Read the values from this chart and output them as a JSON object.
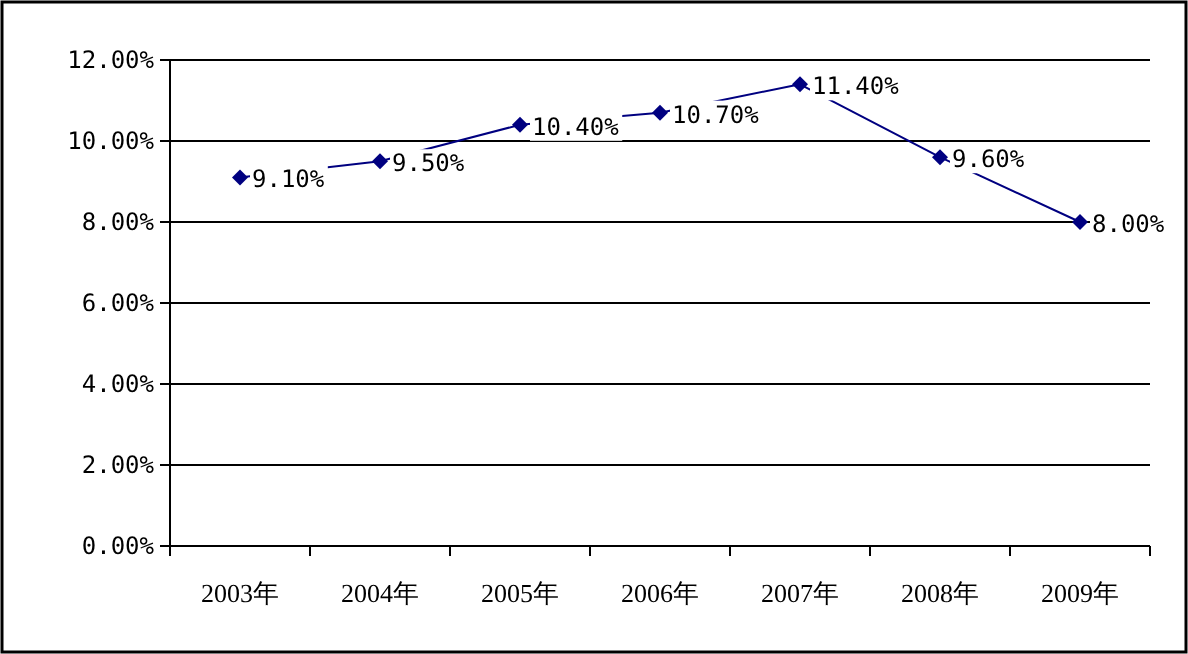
{
  "chart_data": {
    "type": "line",
    "categories": [
      "2003年",
      "2004年",
      "2005年",
      "2006年",
      "2007年",
      "2008年",
      "2009年"
    ],
    "series": [
      {
        "color": "#000080",
        "values": [
          9.1,
          9.5,
          10.4,
          10.7,
          11.4,
          9.6,
          8.0
        ],
        "value_labels": [
          "9.10%",
          "9.50%",
          "10.40%",
          "10.70%",
          "11.40%",
          "9.60%",
          "8.00%"
        ]
      }
    ],
    "ylim": [
      0,
      12
    ],
    "yticks": [
      {
        "value": 0,
        "label": "0.00%"
      },
      {
        "value": 2,
        "label": "2.00%"
      },
      {
        "value": 4,
        "label": "4.00%"
      },
      {
        "value": 6,
        "label": "6.00%"
      },
      {
        "value": 8,
        "label": "8.00%"
      },
      {
        "value": 10,
        "label": "10.00%"
      },
      {
        "value": 12,
        "label": "12.00%"
      }
    ],
    "grid": "y",
    "marker": "diamond",
    "line_style": "solid"
  }
}
